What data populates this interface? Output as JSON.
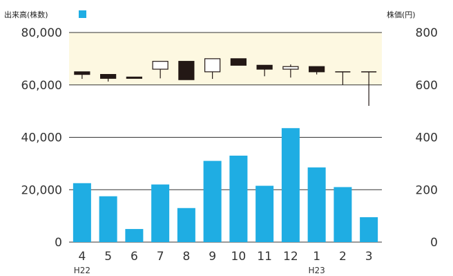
{
  "chart_data": {
    "type": "bar",
    "left_axis_title": "出来高(株数)",
    "right_axis_title": "株価(円)",
    "categories": [
      "4",
      "5",
      "6",
      "7",
      "8",
      "9",
      "10",
      "11",
      "12",
      "1",
      "2",
      "3"
    ],
    "era_labels": [
      {
        "category_index": 0,
        "text": "H22"
      },
      {
        "category_index": 9,
        "text": "H23"
      }
    ],
    "volume_series": {
      "axis": "left",
      "color": "#1fade3",
      "values": [
        22500,
        17500,
        5000,
        22000,
        13000,
        31000,
        33000,
        21500,
        43500,
        28500,
        21000,
        9500
      ]
    },
    "price_series": {
      "type": "candlestick",
      "axis": "right",
      "up_color": "#ffffff",
      "down_color": "#231815",
      "candles": [
        {
          "open": 650,
          "close": 640,
          "high": 650,
          "low": 623
        },
        {
          "open": 640,
          "close": 625,
          "high": 640,
          "low": 613
        },
        {
          "open": 630,
          "close": 625,
          "high": 630,
          "low": 625
        },
        {
          "open": 660,
          "close": 690,
          "high": 690,
          "low": 625
        },
        {
          "open": 690,
          "close": 620,
          "high": 690,
          "low": 620
        },
        {
          "open": 650,
          "close": 700,
          "high": 700,
          "low": 623
        },
        {
          "open": 700,
          "close": 675,
          "high": 700,
          "low": 675
        },
        {
          "open": 675,
          "close": 660,
          "high": 675,
          "low": 633
        },
        {
          "open": 660,
          "close": 670,
          "high": 678,
          "low": 628
        },
        {
          "open": 670,
          "close": 650,
          "high": 670,
          "low": 640
        },
        {
          "open": 650,
          "close": 650,
          "high": 650,
          "low": 600
        },
        {
          "open": 650,
          "close": 650,
          "high": 650,
          "low": 520
        }
      ]
    },
    "left_ticks": [
      "0",
      "20,000",
      "40,000",
      "60,000",
      "80,000"
    ],
    "right_ticks": [
      "0",
      "200",
      "400",
      "600",
      "800"
    ],
    "left_range": [
      0,
      80000
    ],
    "right_range": [
      0,
      800
    ],
    "price_band": [
      600,
      800
    ],
    "band_color": "#fdf8e1",
    "grid": true
  }
}
